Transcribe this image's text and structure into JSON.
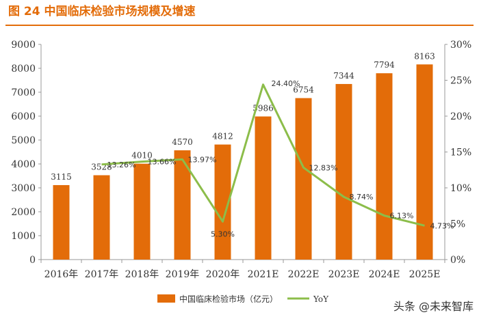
{
  "figure_title": "图 24 中国临床检验市场规模及增速",
  "watermark": "头条 @未来智库",
  "colors": {
    "bar": "#e36c09",
    "line": "#8cbd4a",
    "accent": "#e36c09",
    "axis": "#999999",
    "text": "#333333"
  },
  "chart_data": {
    "type": "bar+line",
    "title": "图 24 中国临床检验市场规模及增速",
    "categories": [
      "2016年",
      "2017年",
      "2018年",
      "2019年",
      "2020年",
      "2021E",
      "2022E",
      "2023E",
      "2024E",
      "2025E"
    ],
    "series": [
      {
        "name": "中国临床检验市场（亿元）",
        "type": "bar",
        "axis": "left",
        "values": [
          3115,
          3528,
          4010,
          4570,
          4812,
          5986,
          6754,
          7344,
          7794,
          8163
        ],
        "labels": [
          "3115",
          "3528",
          "4010",
          "4570",
          "4812",
          "5986",
          "6754",
          "7344",
          "7794",
          "8163"
        ]
      },
      {
        "name": "YoY",
        "type": "line",
        "axis": "right",
        "values": [
          null,
          13.26,
          13.66,
          13.97,
          5.3,
          24.4,
          12.83,
          8.74,
          6.13,
          4.73
        ],
        "labels": [
          "",
          "13.26%",
          "13.66%",
          "13.97%",
          "5.30%",
          "24.40%",
          "12.83%",
          "8.74%",
          "6.13%",
          "4.73%"
        ]
      }
    ],
    "y_left": {
      "min": 0,
      "max": 9000,
      "step": 1000,
      "ticks": [
        "0",
        "1000",
        "2000",
        "3000",
        "4000",
        "5000",
        "6000",
        "7000",
        "8000",
        "9000"
      ]
    },
    "y_right": {
      "min": 0,
      "max": 30,
      "step": 5,
      "ticks": [
        "0%",
        "5%",
        "10%",
        "15%",
        "20%",
        "25%",
        "30%"
      ]
    },
    "legend": {
      "position": "bottom",
      "items": [
        {
          "label": "中国临床检验市场（亿元）",
          "kind": "bar"
        },
        {
          "label": "YoY",
          "kind": "line"
        }
      ]
    }
  }
}
